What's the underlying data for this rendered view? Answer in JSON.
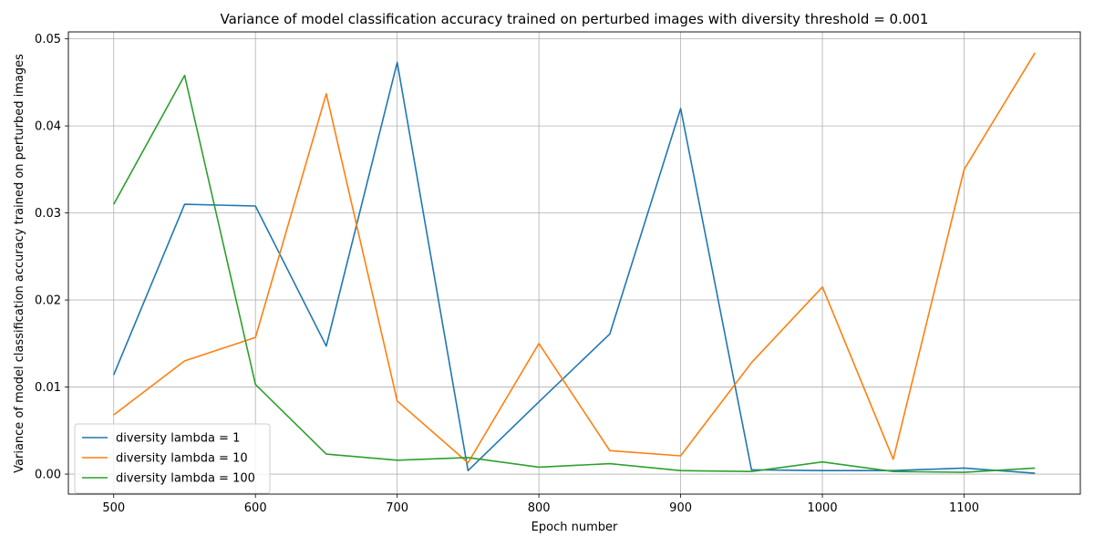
{
  "chart_data": {
    "type": "line",
    "title": "Variance of model classification accuracy trained on perturbed images with diversity threshold = 0.001",
    "xlabel": "Epoch number",
    "ylabel": "Variance of model classification accuracy trained on perturbed images",
    "xlim": [
      468,
      1182
    ],
    "ylim": [
      -0.0023,
      0.0508
    ],
    "xticks": [
      500,
      600,
      700,
      800,
      900,
      1000,
      1100
    ],
    "yticks": [
      0.0,
      0.01,
      0.02,
      0.03,
      0.04,
      0.05
    ],
    "ytick_labels": [
      "0.00",
      "0.01",
      "0.02",
      "0.03",
      "0.04",
      "0.05"
    ],
    "grid": true,
    "legend_position": "lower-left",
    "x": [
      500,
      550,
      600,
      650,
      700,
      750,
      800,
      850,
      900,
      950,
      1000,
      1050,
      1100,
      1150
    ],
    "series": [
      {
        "name": "diversity lambda = 1",
        "color": "#1f77b4",
        "values": [
          0.0114,
          0.031,
          0.0308,
          0.0147,
          0.0473,
          0.0004,
          0.0083,
          0.0161,
          0.042,
          0.0005,
          0.0004,
          0.0004,
          0.0007,
          0.0001
        ]
      },
      {
        "name": "diversity lambda = 10",
        "color": "#ff7f0e",
        "values": [
          0.0068,
          0.013,
          0.0157,
          0.0437,
          0.0084,
          0.0013,
          0.015,
          0.0027,
          0.0021,
          0.0128,
          0.0215,
          0.0017,
          0.035,
          0.0484
        ]
      },
      {
        "name": "diversity lambda = 100",
        "color": "#2ca02c",
        "values": [
          0.031,
          0.0458,
          0.0103,
          0.0023,
          0.0016,
          0.0019,
          0.0008,
          0.0012,
          0.0004,
          0.0003,
          0.0014,
          0.0003,
          0.0002,
          0.0007
        ]
      }
    ]
  }
}
